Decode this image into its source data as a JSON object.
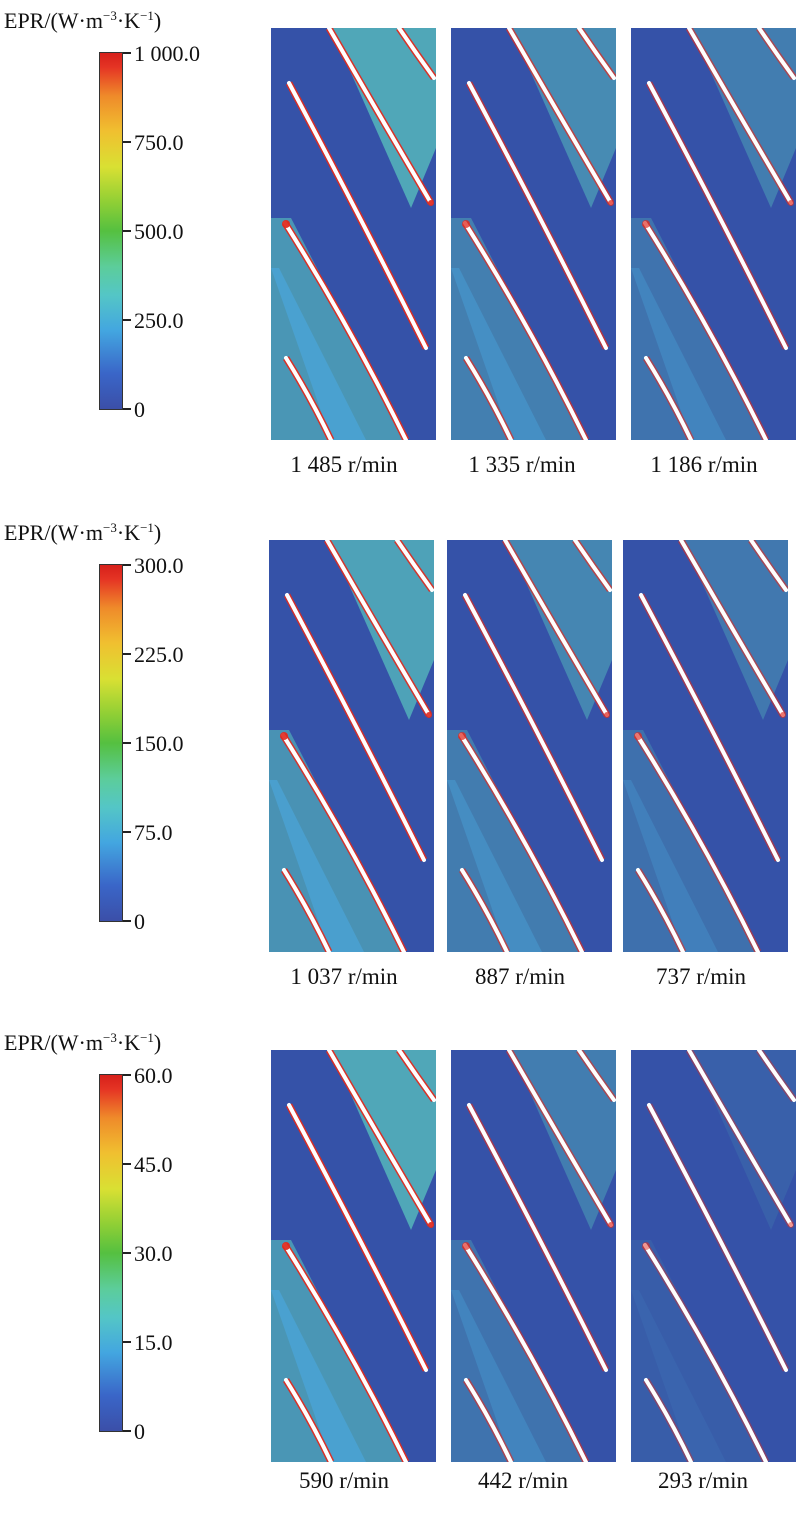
{
  "groups": [
    {
      "unit_label": {
        "prefix": "EPR/(W·m",
        "sup1": "−3",
        "mid": "·K",
        "sup2": "−1",
        "suffix": ")"
      },
      "colorbar": {
        "ticks": [
          "1 000.0",
          "750.0",
          "500.0",
          "250.0",
          "0"
        ],
        "max": 1000,
        "min": 0
      },
      "panels": [
        {
          "caption": "1 485 r/min",
          "intensity": 0.9
        },
        {
          "caption": "1 335 r/min",
          "intensity": 0.6
        },
        {
          "caption": "1 186 r/min",
          "intensity": 0.45
        }
      ]
    },
    {
      "unit_label": {
        "prefix": "EPR/(W·m",
        "sup1": "−3",
        "mid": "·K",
        "sup2": "−1",
        "suffix": ")"
      },
      "colorbar": {
        "ticks": [
          "300.0",
          "225.0",
          "150.0",
          "75.0",
          "0"
        ],
        "max": 300,
        "min": 0
      },
      "panels": [
        {
          "caption": "1 037 r/min",
          "intensity": 0.85
        },
        {
          "caption": "887 r/min",
          "intensity": 0.55
        },
        {
          "caption": "737 r/min",
          "intensity": 0.4
        }
      ]
    },
    {
      "unit_label": {
        "prefix": "EPR/(W·m",
        "sup1": "−3",
        "mid": "·K",
        "sup2": "−1",
        "suffix": ")"
      },
      "colorbar": {
        "ticks": [
          "60.0",
          "45.0",
          "30.0",
          "15.0",
          "0"
        ],
        "max": 60,
        "min": 0
      },
      "panels": [
        {
          "caption": "590 r/min",
          "intensity": 0.9
        },
        {
          "caption": "442 r/min",
          "intensity": 0.45
        },
        {
          "caption": "293 r/min",
          "intensity": 0.15
        }
      ]
    }
  ],
  "colors": {
    "background_field": "#3552a8",
    "blade": "#ffffff",
    "high": "#e02a1f",
    "mid": "#5dd0c0",
    "low": "#4aa8e0"
  }
}
